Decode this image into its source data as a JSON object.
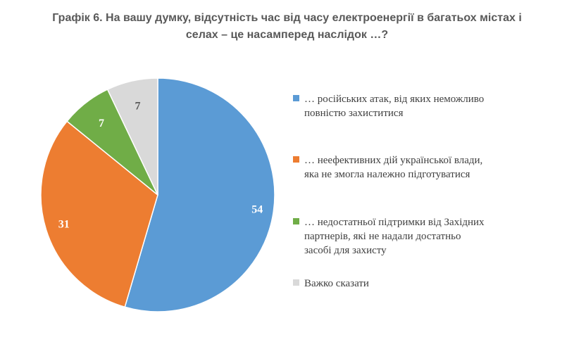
{
  "title_lines": [
    "Графік 6. На вашу думку, відсутність час від часу електроенергії в багатьох містах і",
    "селах – це насамперед наслідок …?"
  ],
  "chart_data": {
    "type": "pie",
    "categories": [
      "… російських атак, від яких неможливо повністю захиститися",
      "… неефективних дій української влади, яка не змогла належно підготуватися",
      "… недостатньої підтримки від Західних партнерів, які не надали достатньо засобі для захисту",
      "Важко сказати"
    ],
    "legend_lines": [
      [
        "… російських атак, від яких неможливо",
        "повністю захиститися"
      ],
      [
        "… неефективних дій української влади,",
        "яка не змогла належно підготуватися"
      ],
      [
        "… недостатньої підтримки від Західних",
        "партнерів, які не надали достатньо",
        "засобі для захисту"
      ],
      [
        "Важко сказати"
      ]
    ],
    "values": [
      54,
      31,
      7,
      7
    ],
    "colors": [
      "#5B9BD5",
      "#ED7D31",
      "#70AD47",
      "#D9D9D9"
    ],
    "label_colors": [
      "#ffffff",
      "#ffffff",
      "#ffffff",
      "#595959"
    ],
    "legend_position": "right"
  }
}
